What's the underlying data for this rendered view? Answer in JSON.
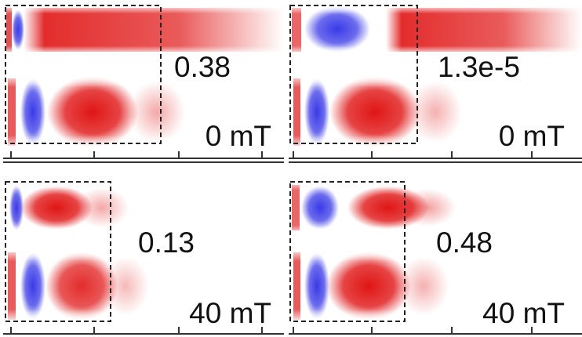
{
  "panels": [
    {
      "value": "0.38",
      "field": "0 mT"
    },
    {
      "value": "1.3e-5",
      "field": "0 mT"
    },
    {
      "value": "0.13",
      "field": "40 mT"
    },
    {
      "value": "0.48",
      "field": "40 mT"
    }
  ],
  "colors": {
    "positive": "#e01515",
    "negative": "#3a3ae8",
    "box": "#222222",
    "axis": "#333333"
  }
}
